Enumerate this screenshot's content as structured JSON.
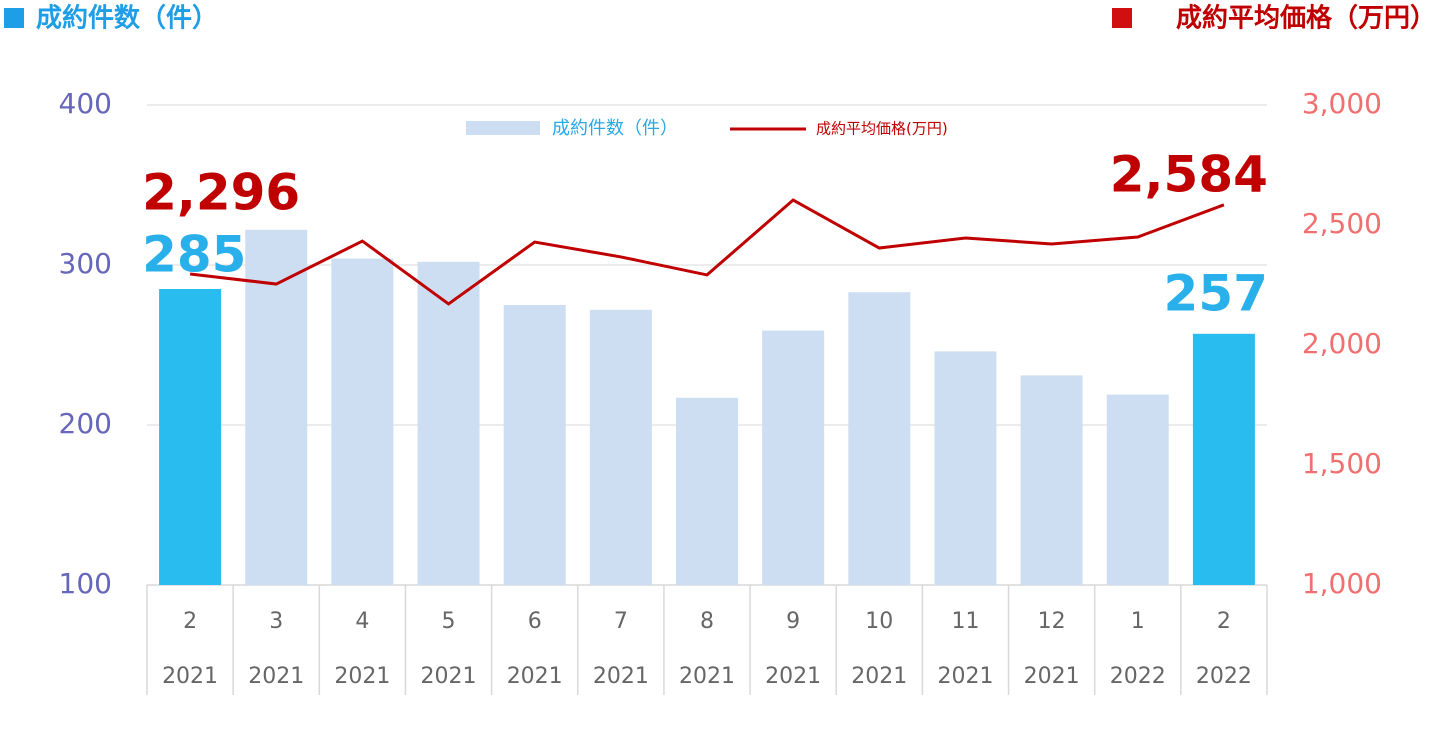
{
  "chart_data": {
    "type": "bar-line",
    "y_label": "成約件数（件）",
    "y2_label": "成約平均価格（万円）",
    "categories": [
      "2",
      "3",
      "4",
      "5",
      "6",
      "7",
      "8",
      "9",
      "10",
      "11",
      "12",
      "1",
      "2"
    ],
    "category_years": [
      "2021",
      "2021",
      "2021",
      "2021",
      "2021",
      "2021",
      "2021",
      "2021",
      "2021",
      "2021",
      "2021",
      "2022",
      "2022"
    ],
    "series": [
      {
        "name": "成約件数（件）",
        "type": "bar",
        "axis": "y",
        "color": "#cddef3",
        "colors": [
          "#29bdef",
          "#cddef3",
          "#cddef3",
          "#cddef3",
          "#cddef3",
          "#cddef3",
          "#cddef3",
          "#cddef3",
          "#cddef3",
          "#cddef3",
          "#cddef3",
          "#cddef3",
          "#29bdef"
        ],
        "values": [
          285,
          322,
          304,
          302,
          275,
          272,
          217,
          259,
          283,
          246,
          231,
          219,
          257
        ],
        "value_labels": [
          "285",
          null,
          null,
          null,
          null,
          null,
          null,
          null,
          null,
          null,
          null,
          null,
          "257"
        ],
        "label_color": "#29b0ea"
      },
      {
        "name": "成約平均価格(万円)",
        "type": "line",
        "axis": "y2",
        "color": "#c00000",
        "values": [
          2296,
          2254,
          2433,
          2171,
          2429,
          2367,
          2292,
          2604,
          2404,
          2446,
          2421,
          2450,
          2584
        ],
        "value_labels": [
          "2,296",
          null,
          null,
          null,
          null,
          null,
          null,
          null,
          null,
          null,
          null,
          null,
          "2,584"
        ],
        "label_color": "#c00000"
      }
    ],
    "ylim": [
      100,
      400
    ],
    "yticks": [
      100,
      200,
      300,
      400
    ],
    "y_color": "#6666bb",
    "y2lim": [
      1000,
      3000
    ],
    "y2ticks": [
      {
        "value": 1000,
        "label": "1,000"
      },
      {
        "value": 1500,
        "label": "1,500"
      },
      {
        "value": 2000,
        "label": "2,000"
      },
      {
        "value": 2500,
        "label": "2,500"
      },
      {
        "value": 3000,
        "label": "3,000"
      }
    ],
    "y2_color": "#f07070",
    "grid": true
  }
}
